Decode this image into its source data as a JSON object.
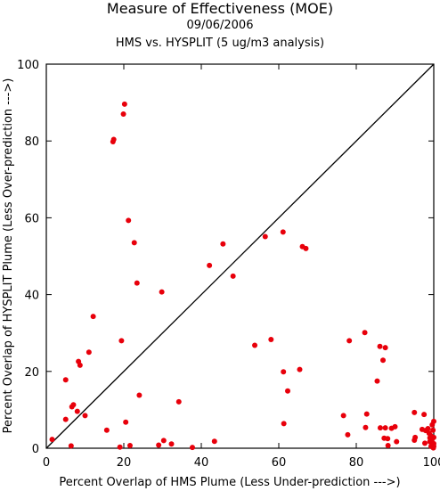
{
  "chart_data": {
    "type": "scatter",
    "title": "Measure of Effectiveness (MOE)",
    "subtitle_date": "09/06/2006",
    "subtitle": "HMS vs. HYSPLIT  (5 ug/m3 analysis)",
    "xlabel": "Percent Overlap of HMS Plume (Less Under-prediction --->)",
    "ylabel": "Percent Overlap of HYSPLIT Plume (Less Over-prediction --->)",
    "xlim": [
      0,
      100
    ],
    "ylim": [
      0,
      100
    ],
    "xticks": [
      0,
      20,
      40,
      60,
      80,
      100
    ],
    "yticks": [
      0,
      20,
      40,
      60,
      80,
      100
    ],
    "grid": false,
    "reference_line": {
      "from": [
        0,
        0
      ],
      "to": [
        100,
        100
      ]
    },
    "point_color": "#e8000b",
    "points": [
      [
        1.5,
        2.3
      ],
      [
        5,
        7.5
      ],
      [
        5,
        17.8
      ],
      [
        6.4,
        0.6
      ],
      [
        6.6,
        10.8
      ],
      [
        7,
        11.3
      ],
      [
        8,
        9.6
      ],
      [
        8.3,
        22.6
      ],
      [
        8.7,
        21.6
      ],
      [
        10,
        8.5
      ],
      [
        11,
        25
      ],
      [
        12.1,
        34.3
      ],
      [
        15.6,
        4.7
      ],
      [
        17.2,
        79.8
      ],
      [
        17.4,
        80.4
      ],
      [
        19,
        0.3
      ],
      [
        19.4,
        28
      ],
      [
        19.9,
        87
      ],
      [
        20.2,
        89.6
      ],
      [
        20.5,
        6.8
      ],
      [
        21.2,
        59.3
      ],
      [
        21.6,
        0.7
      ],
      [
        22.7,
        53.5
      ],
      [
        23.4,
        43
      ],
      [
        24,
        13.8
      ],
      [
        29,
        0.8
      ],
      [
        29.8,
        40.7
      ],
      [
        30.3,
        2
      ],
      [
        32.3,
        1.1
      ],
      [
        34.2,
        12.1
      ],
      [
        37.7,
        0.2
      ],
      [
        42.1,
        47.6
      ],
      [
        43.4,
        1.8
      ],
      [
        45.6,
        53.2
      ],
      [
        48.2,
        44.8
      ],
      [
        53.8,
        26.8
      ],
      [
        56.5,
        55.1
      ],
      [
        58,
        28.3
      ],
      [
        61.1,
        56.3
      ],
      [
        61.3,
        6.4
      ],
      [
        61.2,
        19.9
      ],
      [
        62.3,
        14.9
      ],
      [
        65.4,
        20.5
      ],
      [
        66.1,
        52.5
      ],
      [
        67,
        52
      ],
      [
        76.7,
        8.5
      ],
      [
        77.8,
        3.5
      ],
      [
        78.2,
        28
      ],
      [
        82.2,
        30.1
      ],
      [
        82.4,
        5.4
      ],
      [
        82.7,
        8.9
      ],
      [
        85.4,
        17.5
      ],
      [
        86.1,
        26.5
      ],
      [
        86.2,
        5.3
      ],
      [
        86.9,
        22.9
      ],
      [
        87.2,
        2.6
      ],
      [
        87.5,
        26.2
      ],
      [
        87.5,
        5.3
      ],
      [
        88.1,
        2.5
      ],
      [
        88.2,
        0.7
      ],
      [
        89.1,
        5.2
      ],
      [
        90,
        5.6
      ],
      [
        90.4,
        1.7
      ],
      [
        95,
        9.3
      ],
      [
        95,
        2.1
      ],
      [
        95.2,
        2.8
      ],
      [
        97,
        4.9
      ],
      [
        97.5,
        8.8
      ],
      [
        97.7,
        1.3
      ],
      [
        97.9,
        4.6
      ],
      [
        98.5,
        5.1
      ],
      [
        98.8,
        3.9
      ],
      [
        99,
        1.7
      ],
      [
        99,
        2.7
      ],
      [
        99.2,
        3.3
      ],
      [
        99.3,
        0.5
      ],
      [
        99.5,
        2.2
      ],
      [
        99.6,
        6.1
      ],
      [
        99.8,
        4.7
      ],
      [
        99.9,
        0.1
      ],
      [
        100,
        1.2
      ],
      [
        100,
        0.5
      ],
      [
        100,
        7
      ],
      [
        100,
        2.8
      ]
    ]
  }
}
